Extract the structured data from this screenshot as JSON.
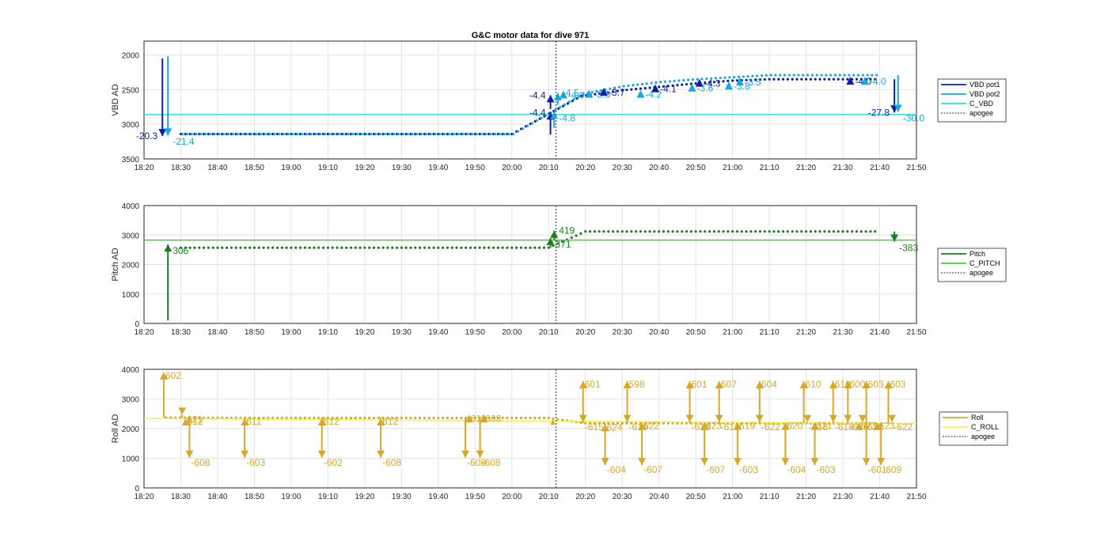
{
  "title": "G&C motor data for dive 971",
  "chart_data": [
    {
      "type": "line",
      "ylabel": "VBD AD",
      "ylim": [
        3500,
        1800
      ],
      "yticks": [
        2000,
        2500,
        3000,
        3500
      ],
      "xlim": [
        "18:20",
        "21:50"
      ],
      "xticks": [
        "18:20",
        "18:30",
        "18:40",
        "18:50",
        "19:00",
        "19:10",
        "19:20",
        "19:30",
        "19:40",
        "19:50",
        "20:00",
        "20:10",
        "20:20",
        "20:30",
        "20:40",
        "20:50",
        "21:00",
        "21:10",
        "21:20",
        "21:30",
        "21:40",
        "21:50"
      ],
      "grid": true,
      "legend_position": "outside-right",
      "apogee": "20:12",
      "series": [
        {
          "name": "VBD pot1",
          "color": "#0a1fa8",
          "x": [
            "18:30",
            "18:40",
            "18:50",
            "19:00",
            "19:10",
            "19:20",
            "19:30",
            "19:40",
            "19:50",
            "20:00",
            "20:19",
            "20:25",
            "20:30",
            "20:40",
            "20:50",
            "21:00",
            "21:10",
            "21:20",
            "21:30",
            "21:40"
          ],
          "y": [
            3140,
            3140,
            3140,
            3140,
            3140,
            3140,
            3140,
            3140,
            3140,
            3140,
            2590,
            2550,
            2510,
            2460,
            2410,
            2370,
            2350,
            2350,
            2350,
            2350
          ]
        },
        {
          "name": "VBD pot2",
          "color": "#1aa6e0",
          "x": [
            "18:30",
            "18:40",
            "18:50",
            "19:00",
            "19:10",
            "19:20",
            "19:30",
            "19:40",
            "19:50",
            "20:00",
            "20:19",
            "20:25",
            "20:30",
            "20:40",
            "20:50",
            "21:00",
            "21:10",
            "21:20",
            "21:30",
            "21:40"
          ],
          "y": [
            3140,
            3140,
            3140,
            3140,
            3140,
            3140,
            3140,
            3140,
            3140,
            3140,
            2560,
            2500,
            2450,
            2390,
            2350,
            2320,
            2290,
            2290,
            2290,
            2290
          ]
        },
        {
          "name": "C_VBD",
          "color": "#22e0e8",
          "x": [
            "18:20",
            "21:50"
          ],
          "y": [
            2860,
            2860
          ]
        }
      ],
      "moves": [
        {
          "t": "18:25",
          "from": 2050,
          "to": 3170,
          "label": "-20.3",
          "color": "#0a1fa8",
          "side": "left"
        },
        {
          "t": "18:26.5",
          "from": 2020,
          "to": 3160,
          "label": "-21.4",
          "color": "#1aa6e0",
          "side": "right-below"
        },
        {
          "t": "20:10.5",
          "from": 3150,
          "to": 2830,
          "label": "-4.4",
          "color": "#0a1fa8",
          "side": "left"
        },
        {
          "t": "20:11.5",
          "from": 3050,
          "to": 2820,
          "label": "-4.8",
          "color": "#1aa6e0",
          "side": "right-below"
        },
        {
          "t": "20:10.5",
          "from": 2780,
          "to": 2580,
          "label": "-4.4",
          "color": "#0a1fa8",
          "side": "left"
        },
        {
          "t": "20:12.5",
          "from": 2720,
          "to": 2550,
          "label": "-4.5",
          "color": "#1aa6e0",
          "side": "right"
        },
        {
          "t": "21:44",
          "from": 2350,
          "to": 2830,
          "label": "-27.8",
          "color": "#0a1fa8",
          "side": "left"
        },
        {
          "t": "21:45",
          "from": 2290,
          "to": 2820,
          "label": "-30.0",
          "color": "#1aa6e0",
          "side": "right-below"
        }
      ],
      "small_labels": [
        {
          "t": "20:14",
          "y": 2570,
          "text": "-4.0",
          "color": "#1aa6e0"
        },
        {
          "t": "20:21",
          "y": 2560,
          "text": "-3.3",
          "color": "#1aa6e0"
        },
        {
          "t": "20:25",
          "y": 2530,
          "text": "-3.7",
          "color": "#0a1fa8"
        },
        {
          "t": "20:35",
          "y": 2560,
          "text": "-4.2",
          "color": "#1aa6e0"
        },
        {
          "t": "20:39",
          "y": 2480,
          "text": "-4.1",
          "color": "#0a1fa8"
        },
        {
          "t": "20:49",
          "y": 2470,
          "text": "-3.6",
          "color": "#1aa6e0"
        },
        {
          "t": "20:51",
          "y": 2400,
          "text": "-4.3",
          "color": "#0a1fa8"
        },
        {
          "t": "20:59",
          "y": 2440,
          "text": "-3.8",
          "color": "#1aa6e0"
        },
        {
          "t": "21:02",
          "y": 2380,
          "text": "-3.5",
          "color": "#1aa6e0"
        },
        {
          "t": "21:32",
          "y": 2370,
          "text": "-4.0",
          "color": "#0a1fa8"
        },
        {
          "t": "21:36",
          "y": 2370,
          "text": "-4.0",
          "color": "#1aa6e0"
        }
      ]
    },
    {
      "type": "line",
      "ylabel": "Pitch AD",
      "ylim": [
        0,
        4000
      ],
      "yticks": [
        0,
        1000,
        2000,
        3000,
        4000
      ],
      "xlim": [
        "18:20",
        "21:50"
      ],
      "xticks": [
        "18:20",
        "18:30",
        "18:40",
        "18:50",
        "19:00",
        "19:10",
        "19:20",
        "19:30",
        "19:40",
        "19:50",
        "20:00",
        "20:10",
        "20:20",
        "20:30",
        "20:40",
        "20:50",
        "21:00",
        "21:10",
        "21:20",
        "21:30",
        "21:40",
        "21:50"
      ],
      "grid": true,
      "legend_position": "outside-right",
      "apogee": "20:12",
      "series": [
        {
          "name": "Pitch",
          "color": "#1e7d1e",
          "x": [
            "18:30",
            "18:40",
            "18:50",
            "19:00",
            "19:10",
            "19:20",
            "19:30",
            "19:40",
            "19:50",
            "20:00",
            "20:10",
            "20:20",
            "20:30",
            "20:40",
            "20:50",
            "21:00",
            "21:10",
            "21:20",
            "21:30",
            "21:40"
          ],
          "y": [
            2570,
            2570,
            2570,
            2570,
            2570,
            2570,
            2570,
            2570,
            2570,
            2570,
            2570,
            3120,
            3120,
            3120,
            3120,
            3120,
            3120,
            3120,
            3120,
            3120
          ]
        },
        {
          "name": "C_PITCH",
          "color": "#3cd23c",
          "x": [
            "18:20",
            "21:50"
          ],
          "y": [
            2830,
            2830
          ]
        }
      ],
      "moves": [
        {
          "t": "18:26.5",
          "from": 100,
          "to": 2680,
          "label": "306",
          "color": "#1e7d1e",
          "side": "right-below"
        },
        {
          "t": "20:10.5",
          "from": 2570,
          "to": 2900,
          "label": "371",
          "color": "#1e7d1e",
          "side": "right-below"
        },
        {
          "t": "20:11.5",
          "from": 2830,
          "to": 3150,
          "label": "419",
          "color": "#1e7d1e",
          "side": "right"
        },
        {
          "t": "21:44",
          "from": 3120,
          "to": 2780,
          "label": "-383",
          "color": "#1e7d1e",
          "side": "right-below"
        }
      ],
      "small_labels": []
    },
    {
      "type": "line",
      "ylabel": "Roll AD",
      "ylim": [
        0,
        4000
      ],
      "yticks": [
        0,
        1000,
        2000,
        3000,
        4000
      ],
      "xlim": [
        "18:20",
        "21:50"
      ],
      "xticks": [
        "18:20",
        "18:30",
        "18:40",
        "18:50",
        "19:00",
        "19:10",
        "19:20",
        "19:30",
        "19:40",
        "19:50",
        "20:00",
        "20:10",
        "20:20",
        "20:30",
        "20:40",
        "20:50",
        "21:00",
        "21:10",
        "21:20",
        "21:30",
        "21:40",
        "21:50"
      ],
      "grid": true,
      "legend_position": "outside-right",
      "apogee": "20:12",
      "series": [
        {
          "name": "Roll",
          "color": "#d4a92a",
          "x": [
            "18:26",
            "18:40",
            "18:50",
            "19:00",
            "19:10",
            "19:20",
            "19:30",
            "19:40",
            "19:50",
            "20:00",
            "20:10",
            "20:20",
            "20:30",
            "20:40",
            "20:50",
            "21:00",
            "21:10",
            "21:20",
            "21:30",
            "21:40"
          ],
          "y": [
            2370,
            2360,
            2360,
            2360,
            2360,
            2360,
            2360,
            2360,
            2360,
            2360,
            2360,
            2180,
            2180,
            2180,
            2180,
            2180,
            2180,
            2180,
            2180,
            2180
          ]
        },
        {
          "name": "C_ROLL",
          "color": "#f2f04a",
          "x": [
            "18:20",
            "21:50"
          ],
          "y": [
            2340,
            2170
          ]
        }
      ],
      "labels": [
        {
          "t": "18:26",
          "y": 3950,
          "text": "602"
        },
        {
          "t": "18:31",
          "y": 2150,
          "text": "-621"
        },
        {
          "t": "18:32",
          "y": 2400,
          "text": "612"
        },
        {
          "t": "18:33",
          "y": 700,
          "text": "-608"
        },
        {
          "t": "18:48",
          "y": 2400,
          "text": "611"
        },
        {
          "t": "18:48",
          "y": 700,
          "text": "-603"
        },
        {
          "t": "19:09",
          "y": 2400,
          "text": "612"
        },
        {
          "t": "19:09",
          "y": 700,
          "text": "-602"
        },
        {
          "t": "19:25",
          "y": 2400,
          "text": "612"
        },
        {
          "t": "19:25",
          "y": 700,
          "text": "-608"
        },
        {
          "t": "19:49",
          "y": 2500,
          "text": "619"
        },
        {
          "t": "19:53",
          "y": 2500,
          "text": "608"
        },
        {
          "t": "19:48",
          "y": 700,
          "text": "-608"
        },
        {
          "t": "19:52",
          "y": 700,
          "text": "-608"
        },
        {
          "t": "20:20",
          "y": 3650,
          "text": "601"
        },
        {
          "t": "20:20",
          "y": 1900,
          "text": "-615"
        },
        {
          "t": "20:26",
          "y": 2200,
          "text": "624"
        },
        {
          "t": "20:26",
          "y": 450,
          "text": "-604"
        },
        {
          "t": "20:32",
          "y": 3650,
          "text": "598"
        },
        {
          "t": "20:32",
          "y": 1900,
          "text": "-616"
        },
        {
          "t": "20:36",
          "y": 2250,
          "text": "622"
        },
        {
          "t": "20:36",
          "y": 450,
          "text": "-607"
        },
        {
          "t": "20:49",
          "y": 3650,
          "text": "601"
        },
        {
          "t": "20:49",
          "y": 1900,
          "text": "-616"
        },
        {
          "t": "20:53",
          "y": 2250,
          "text": "623"
        },
        {
          "t": "20:53",
          "y": 450,
          "text": "-607"
        },
        {
          "t": "20:57",
          "y": 3650,
          "text": "607"
        },
        {
          "t": "20:57",
          "y": 1900,
          "text": "-616"
        },
        {
          "t": "21:02",
          "y": 2250,
          "text": "619"
        },
        {
          "t": "21:02",
          "y": 450,
          "text": "-603"
        },
        {
          "t": "21:08",
          "y": 3650,
          "text": "604"
        },
        {
          "t": "21:08",
          "y": 1900,
          "text": "-622"
        },
        {
          "t": "21:15",
          "y": 2250,
          "text": "620"
        },
        {
          "t": "21:15",
          "y": 450,
          "text": "-604"
        },
        {
          "t": "21:20",
          "y": 3650,
          "text": "610"
        },
        {
          "t": "21:21",
          "y": 1900,
          "text": "-618"
        },
        {
          "t": "21:23",
          "y": 2250,
          "text": "621"
        },
        {
          "t": "21:23",
          "y": 450,
          "text": "-603"
        },
        {
          "t": "21:28",
          "y": 3650,
          "text": "610"
        },
        {
          "t": "21:32",
          "y": 3650,
          "text": "600"
        },
        {
          "t": "21:37",
          "y": 3650,
          "text": "603"
        },
        {
          "t": "21:43",
          "y": 3650,
          "text": "603"
        },
        {
          "t": "21:28",
          "y": 1900,
          "text": "-618"
        },
        {
          "t": "21:32",
          "y": 1900,
          "text": "-626"
        },
        {
          "t": "21:35",
          "y": 2250,
          "text": "623"
        },
        {
          "t": "21:36",
          "y": 1900,
          "text": "-622"
        },
        {
          "t": "21:40",
          "y": 2250,
          "text": "623"
        },
        {
          "t": "21:44",
          "y": 1900,
          "text": "-622"
        },
        {
          "t": "21:37",
          "y": 450,
          "text": "-601"
        },
        {
          "t": "21:41",
          "y": 450,
          "text": "-609"
        }
      ]
    }
  ],
  "legend": [
    [
      {
        "name": "VBD pot1",
        "color": "#0a1fa8",
        "style": "solid"
      },
      {
        "name": "VBD pot2",
        "color": "#1aa6e0",
        "style": "solid"
      },
      {
        "name": "C_VBD",
        "color": "#22e0e8",
        "style": "solid"
      },
      {
        "name": "apogee",
        "color": "#333333",
        "style": "dotted"
      }
    ],
    [
      {
        "name": "Pitch",
        "color": "#1e7d1e",
        "style": "solid"
      },
      {
        "name": "C_PITCH",
        "color": "#3cd23c",
        "style": "solid"
      },
      {
        "name": "apogee",
        "color": "#333333",
        "style": "dotted"
      }
    ],
    [
      {
        "name": "Roll",
        "color": "#d4a92a",
        "style": "solid"
      },
      {
        "name": "C_ROLL",
        "color": "#f2f04a",
        "style": "solid"
      },
      {
        "name": "apogee",
        "color": "#333333",
        "style": "dotted"
      }
    ]
  ]
}
